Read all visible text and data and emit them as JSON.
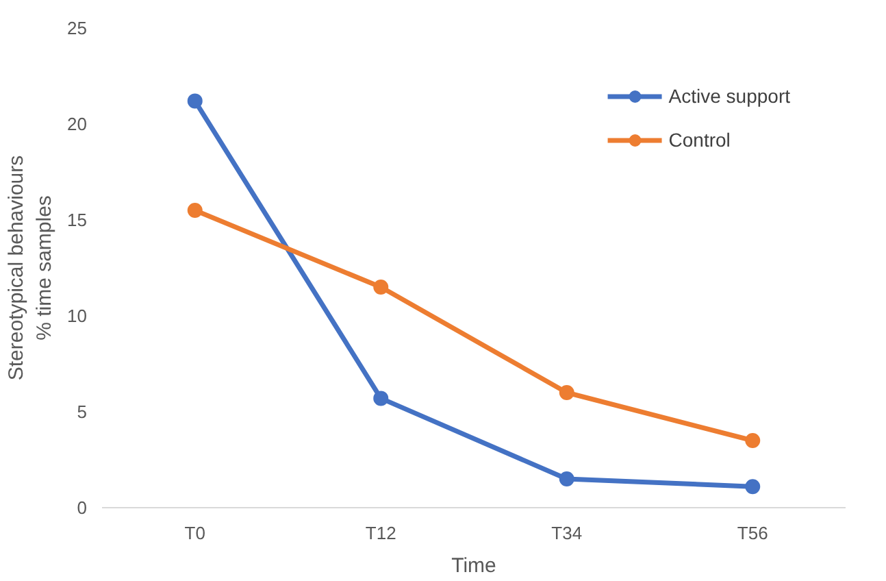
{
  "chart_data": {
    "type": "line",
    "xlabel": "Time",
    "ylabel": "Stereotypical behaviours\n% time samples",
    "categories": [
      "T0",
      "T12",
      "T34",
      "T56"
    ],
    "series": [
      {
        "name": "Active support",
        "color": "#4472c4",
        "values": [
          21.2,
          5.7,
          1.5,
          1.1
        ]
      },
      {
        "name": "Control",
        "color": "#ed7d31",
        "values": [
          15.5,
          11.5,
          6.0,
          3.5
        ]
      }
    ],
    "ylim": [
      0,
      25
    ],
    "yticks": [
      0,
      5,
      10,
      15,
      20,
      25
    ],
    "grid": false,
    "legend": "top right",
    "marker": "circle",
    "line_style": "solid"
  }
}
